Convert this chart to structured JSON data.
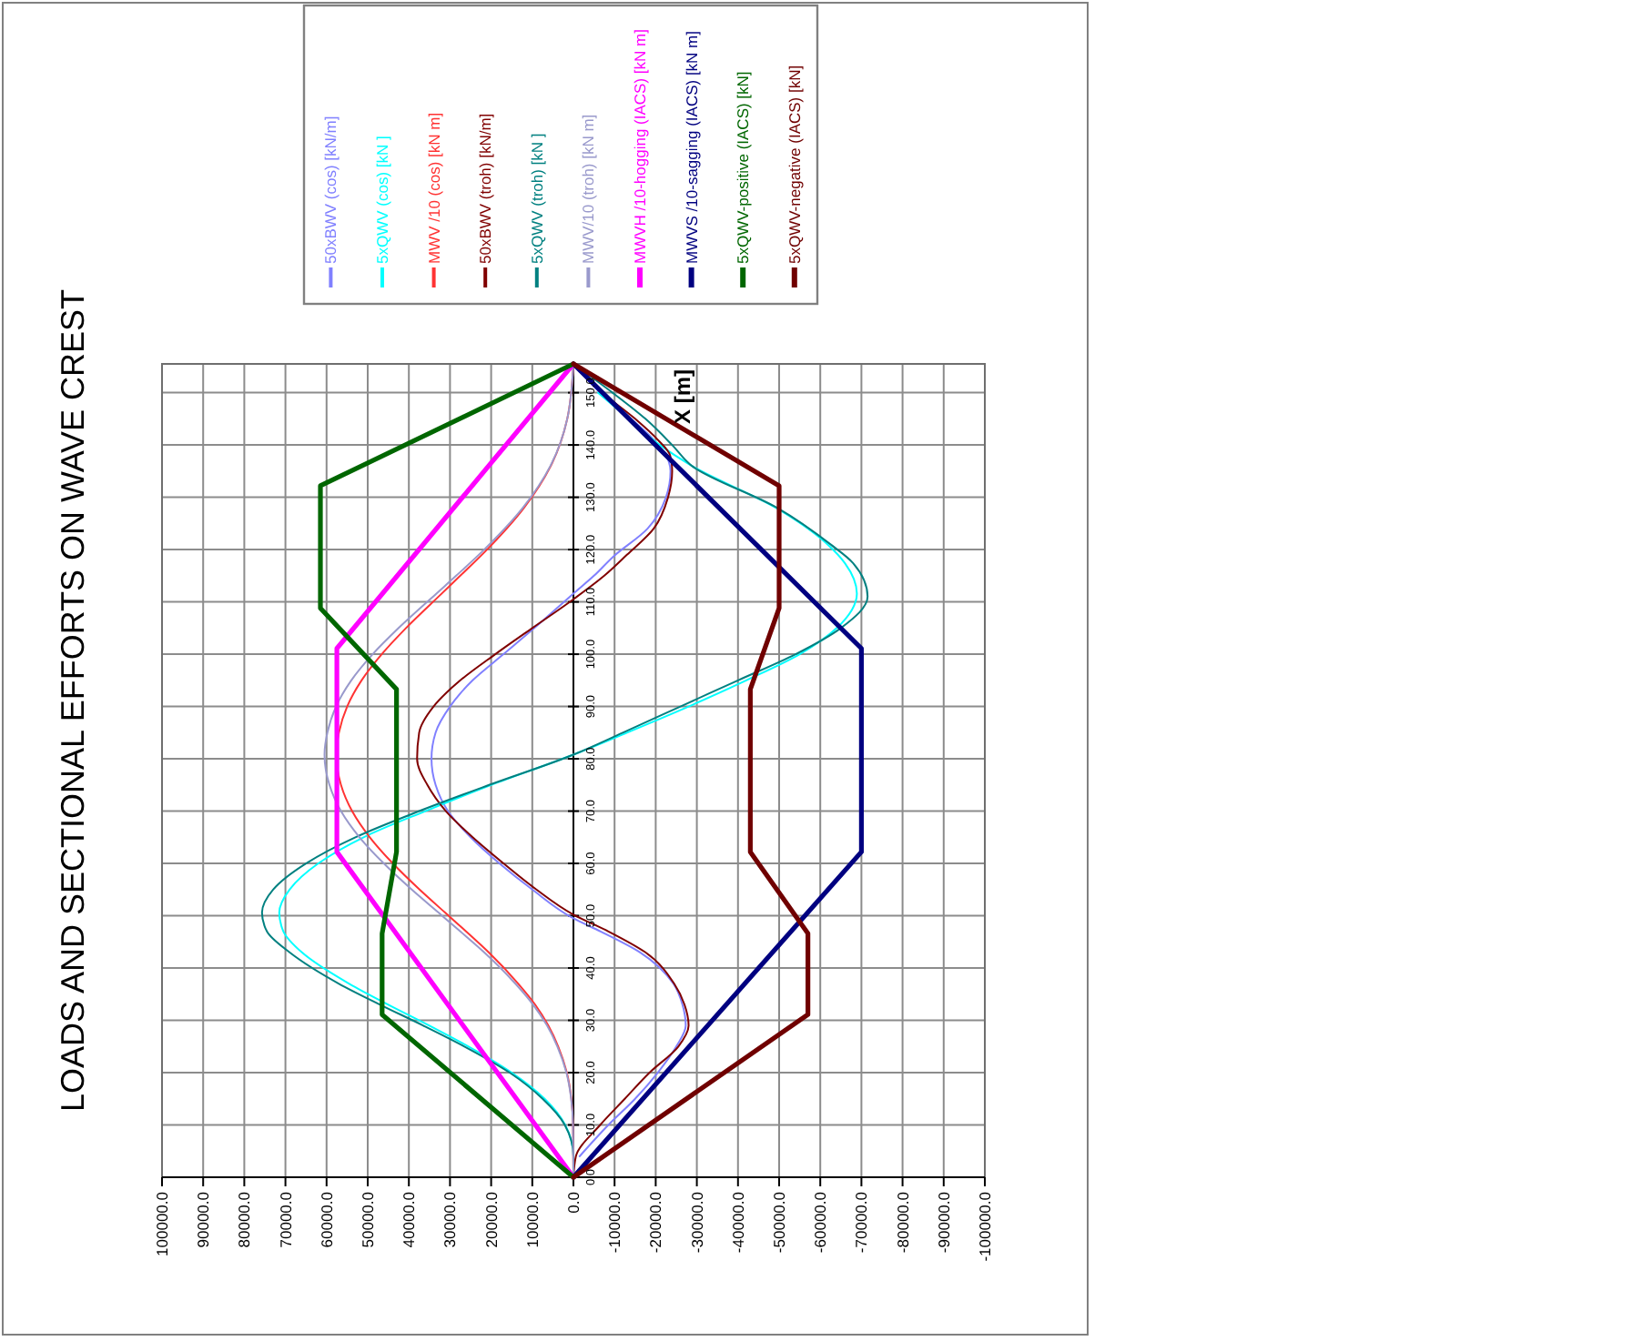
{
  "chart_data": {
    "type": "line",
    "title": "LOADS AND SECTIONAL EFFORTS ON WAVE CREST",
    "ylabel": "X [m]",
    "xlim": [
      100000,
      -100000
    ],
    "ylim": [
      0,
      155.5
    ],
    "xticks": [
      {
        "value": 100000,
        "label": "100000.0"
      },
      {
        "value": 90000,
        "label": "90000.0"
      },
      {
        "value": 80000,
        "label": "80000.0"
      },
      {
        "value": 70000,
        "label": "70000.0"
      },
      {
        "value": 60000,
        "label": "60000.0"
      },
      {
        "value": 50000,
        "label": "50000.0"
      },
      {
        "value": 40000,
        "label": "40000.0"
      },
      {
        "value": 30000,
        "label": "30000.0"
      },
      {
        "value": 20000,
        "label": "20000.0"
      },
      {
        "value": 10000,
        "label": "10000.0"
      },
      {
        "value": 0,
        "label": "0.0"
      },
      {
        "value": -10000,
        "label": "-10000.0"
      },
      {
        "value": -20000,
        "label": "-20000.0"
      },
      {
        "value": -30000,
        "label": "-30000.0"
      },
      {
        "value": -40000,
        "label": "-40000.0"
      },
      {
        "value": -50000,
        "label": "-50000.0"
      },
      {
        "value": -60000,
        "label": "-60000.0"
      },
      {
        "value": -70000,
        "label": "-70000.0"
      },
      {
        "value": -80000,
        "label": "-80000.0"
      },
      {
        "value": -90000,
        "label": "-90000.0"
      },
      {
        "value": -100000,
        "label": "-100000.0"
      }
    ],
    "yticks": [
      {
        "value": 0,
        "label": "0.0"
      },
      {
        "value": 10,
        "label": "10.0"
      },
      {
        "value": 20,
        "label": "20.0"
      },
      {
        "value": 30,
        "label": "30.0"
      },
      {
        "value": 40,
        "label": "40.0"
      },
      {
        "value": 50,
        "label": "50.0"
      },
      {
        "value": 60,
        "label": "60.0"
      },
      {
        "value": 70,
        "label": "70.0"
      },
      {
        "value": 80,
        "label": "80.0"
      },
      {
        "value": 90,
        "label": "90.0"
      },
      {
        "value": 100,
        "label": "100.0"
      },
      {
        "value": 110,
        "label": "110.0"
      },
      {
        "value": 120,
        "label": "120.0"
      },
      {
        "value": 130,
        "label": "130.0"
      },
      {
        "value": 140,
        "label": "140.0"
      },
      {
        "value": 150,
        "label": "150.0"
      }
    ],
    "grid": true,
    "legend": "top",
    "series": [
      {
        "name": "50xBWV (cos) [kN/m]",
        "color": "#8080ff",
        "x": [
          -1500,
          -8500,
          -15000,
          -20500,
          -25000,
          -27300,
          -26500,
          -24300,
          -16200,
          -6600,
          0,
          10000,
          18000,
          25000,
          30500,
          33500,
          34500,
          33500,
          30000,
          24500,
          17000,
          9500,
          0,
          -5000,
          -9600,
          -18000,
          -22500,
          -23600,
          -22500,
          -19500,
          -14000,
          -6500,
          0
        ],
        "values": [
          4,
          10,
          15,
          20,
          25,
          29,
          33,
          37,
          43,
          47,
          49.5,
          55,
          60,
          65,
          70,
          75,
          80,
          85,
          90,
          95,
          100,
          105,
          111.6,
          115,
          118.6,
          124,
          130,
          135,
          138,
          141,
          145,
          150,
          155.5
        ]
      },
      {
        "name": "5xQWV (cos) [kN ]",
        "color": "#00ffff",
        "x": [
          0,
          0,
          2000,
          7000,
          15000,
          25500,
          35000,
          45000,
          54500,
          66000,
          70500,
          71500,
          69000,
          62000,
          51000,
          36000,
          20000,
          0,
          -13000,
          -28000,
          -42000,
          -55000,
          -64000,
          -68900,
          -66000,
          -61900,
          -49400,
          -28800,
          -21000,
          -13500,
          -6000
        ],
        "values": [
          0,
          4,
          10,
          15,
          20,
          25,
          29,
          33,
          37,
          43,
          47,
          50.6,
          55,
          60,
          65,
          70,
          75,
          80.8,
          85,
          90,
          95,
          100,
          105,
          111.6,
          117.4,
          120.9,
          127.9,
          136,
          140,
          145,
          150
        ]
      },
      {
        "name": "MWV /10 (cos) [kN m]",
        "color": "#ff3333",
        "x": [
          0,
          100,
          500,
          1600,
          3700,
          6100,
          9300,
          13400,
          20600,
          26100,
          31200,
          37400,
          43900,
          49500,
          53800,
          56500,
          57600,
          57000,
          55000,
          51500,
          46600,
          40700,
          32000,
          27500,
          21000,
          12000,
          5500,
          1500,
          0
        ],
        "values": [
          0,
          10,
          15,
          20,
          25,
          29,
          33,
          37,
          43,
          47,
          50.6,
          55,
          60,
          65,
          70,
          75,
          80.8,
          85,
          90,
          95,
          100,
          105,
          111.6,
          115,
          120,
          128,
          136,
          145,
          155.5
        ]
      },
      {
        "name": "50xBWV (troh) [kN/m]",
        "color": "#800000",
        "x": [
          0,
          -600,
          -6500,
          -12500,
          -18500,
          -25500,
          -28000,
          -27000,
          -24500,
          -17500,
          -8500,
          0,
          9000,
          17000,
          24500,
          31000,
          35500,
          38000,
          37500,
          34000,
          27500,
          19000,
          10000,
          0,
          -7500,
          -13000,
          -19500,
          -23000,
          -24000,
          -23500,
          -20500,
          -15000,
          -7000,
          0
        ],
        "values": [
          0,
          4,
          10,
          15,
          20,
          25,
          29,
          33,
          37,
          43,
          47,
          50.2,
          55,
          60,
          65,
          70,
          75,
          80,
          85,
          90,
          95,
          100,
          105,
          110.5,
          115,
          119,
          124,
          130,
          135,
          138,
          141,
          145,
          150,
          155.5
        ]
      },
      {
        "name": "5xQWV (troh) [kN ]",
        "color": "#008080",
        "x": [
          0,
          0,
          2100,
          7500,
          15500,
          26500,
          36500,
          47000,
          57000,
          69000,
          74500,
          75700,
          73000,
          65000,
          53000,
          37500,
          20500,
          0,
          -12000,
          -26000,
          -40000,
          -54000,
          -65000,
          -71500,
          -68000,
          -62500,
          -49500,
          -28800,
          -24000,
          -17500,
          -9500,
          0
        ],
        "values": [
          0,
          4,
          10,
          15,
          20,
          25,
          29,
          33,
          37,
          43,
          47,
          50.6,
          55,
          60,
          65,
          70,
          75,
          80.8,
          85,
          90,
          95,
          100,
          105,
          111,
          117.4,
          121,
          128,
          136,
          140,
          145,
          150,
          155.5
        ]
      },
      {
        "name": "MWV/10 (troh) [kN m]",
        "color": "#9999cc",
        "x": [
          0,
          100,
          550,
          1700,
          3900,
          6400,
          9800,
          14100,
          21700,
          27500,
          32800,
          39300,
          46100,
          52000,
          56500,
          59300,
          60500,
          59800,
          57700,
          54000,
          48800,
          42500,
          33300,
          28500,
          21700,
          12300,
          5600,
          1500,
          0
        ],
        "values": [
          0,
          10,
          15,
          20,
          25,
          29,
          33,
          37,
          43,
          47,
          50.6,
          55,
          60,
          65,
          70,
          75,
          80.8,
          85,
          90,
          95,
          100,
          105,
          111.6,
          115,
          120,
          128,
          136,
          145,
          155.5
        ]
      },
      {
        "name": "MWVH /10-hogging (IACS) [kN m]",
        "color": "#ff00ff",
        "x": [
          0,
          57500,
          57500,
          0
        ],
        "values": [
          0,
          62.2,
          101.1,
          155.5
        ]
      },
      {
        "name": "MWVS /10-sagging (IACS) [kN m]",
        "color": "#000080",
        "x": [
          0,
          -70000,
          -70000,
          0
        ],
        "values": [
          0,
          62.2,
          101.1,
          155.5
        ]
      },
      {
        "name": "5xQWV-positive (IACS) [kN]",
        "color": "#006600",
        "x": [
          0,
          46500,
          46500,
          43000,
          43000,
          61500,
          61500,
          0
        ],
        "values": [
          0,
          31.1,
          46.6,
          62.2,
          93.3,
          108.8,
          132.2,
          155.5
        ]
      },
      {
        "name": "5xQWV-negative (IACS) [kN]",
        "color": "#700000",
        "x": [
          0,
          -57000,
          -57000,
          -43000,
          -43000,
          -50000,
          -50000,
          0
        ],
        "values": [
          0,
          31.1,
          46.6,
          62.2,
          93.3,
          108.8,
          132.2,
          155.5
        ]
      }
    ]
  }
}
